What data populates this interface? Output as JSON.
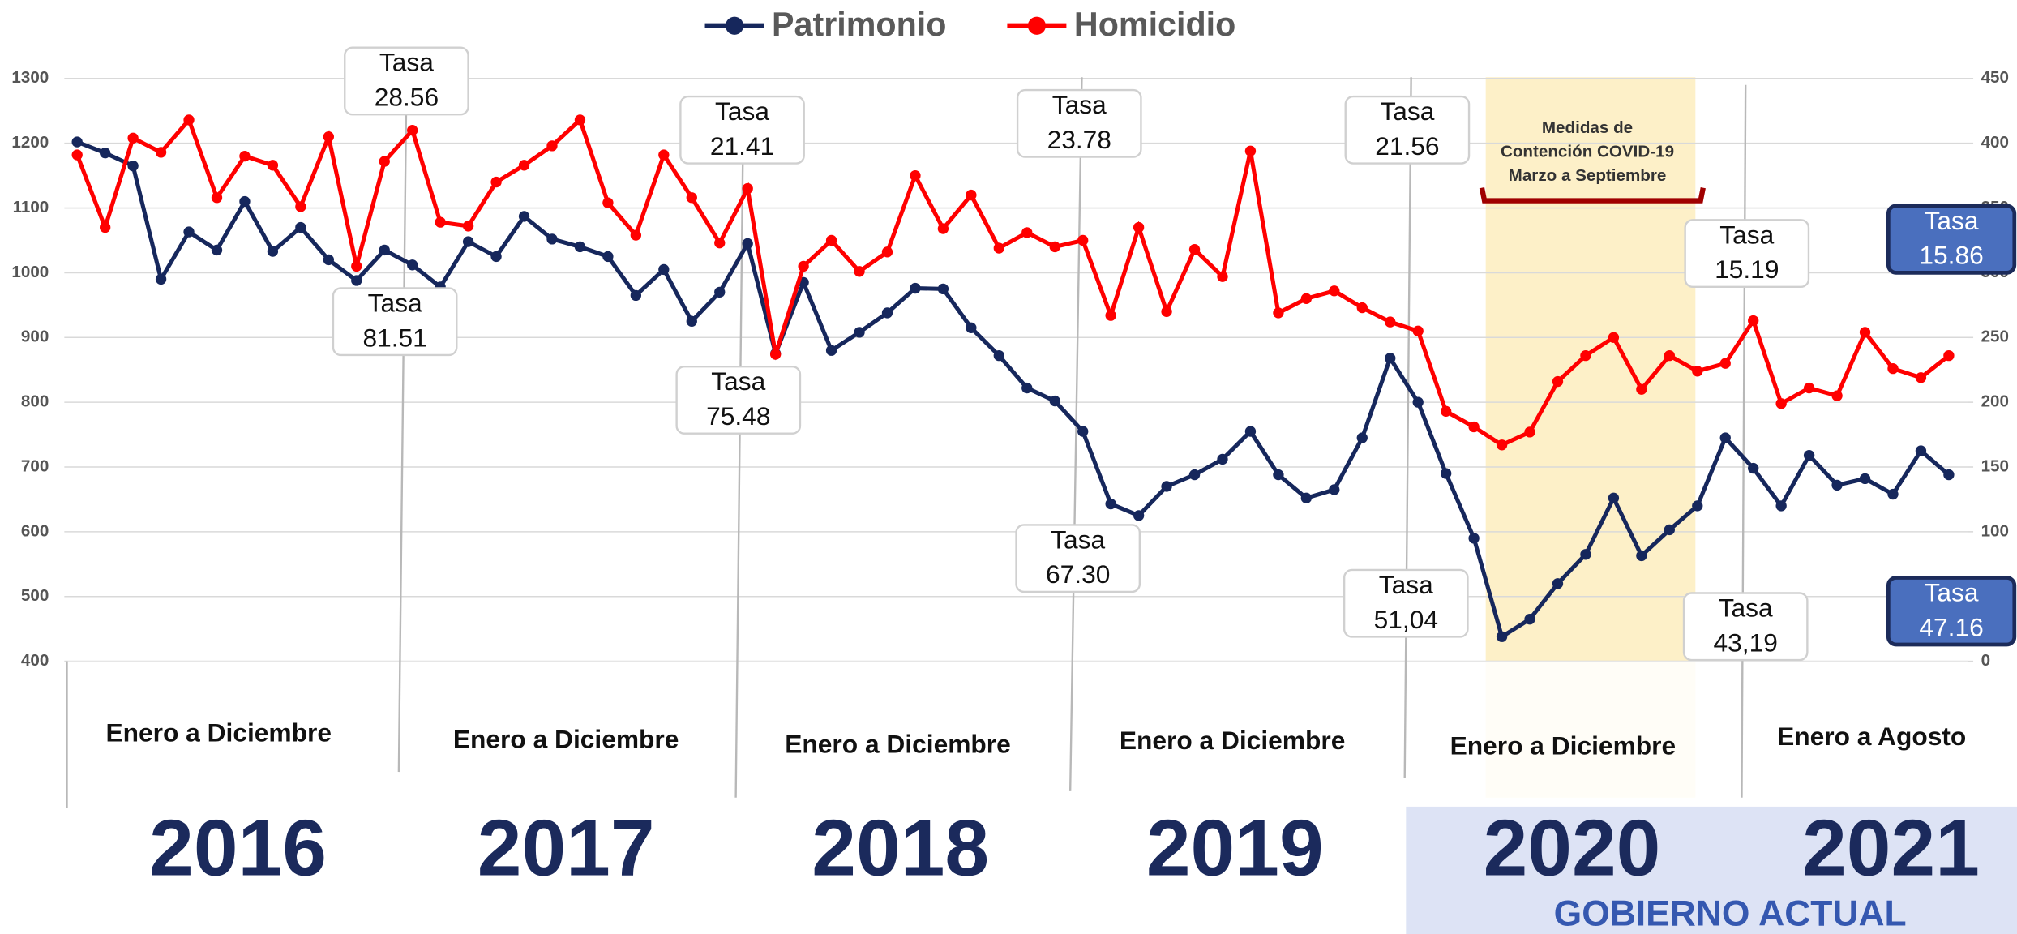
{
  "chart_data": {
    "type": "line",
    "legend": {
      "position": "top"
    },
    "series": [
      {
        "name": "Patrimonio",
        "color": "#16275c",
        "axis": "y",
        "values": [
          1202,
          1185,
          1165,
          990,
          1063,
          1035,
          1110,
          1033,
          1070,
          1020,
          988,
          1035,
          1012,
          978,
          1048,
          1025,
          1087,
          1052,
          1040,
          1025,
          965,
          1005,
          925,
          970,
          1045,
          875,
          985,
          880,
          908,
          938,
          976,
          975,
          915,
          872,
          822,
          802,
          755,
          643,
          625,
          670,
          688,
          712,
          755,
          688,
          652,
          665,
          745,
          868,
          800,
          690,
          590,
          438,
          465,
          520,
          565,
          652,
          563,
          603,
          640,
          745,
          698,
          640,
          718,
          672,
          682,
          658,
          725,
          688
        ]
      },
      {
        "name": "Homicidio",
        "color": "#ff0000",
        "axis": "y2",
        "values": [
          391,
          335,
          404,
          393,
          418,
          358,
          390,
          383,
          351,
          405,
          305,
          386,
          410,
          339,
          336,
          370,
          383,
          398,
          418,
          354,
          329,
          391,
          358,
          323,
          365,
          237,
          305,
          325,
          301,
          316,
          375,
          334,
          360,
          319,
          331,
          320,
          325,
          267,
          335,
          270,
          318,
          297,
          394,
          269,
          280,
          286,
          273,
          262,
          255,
          193,
          181,
          167,
          177,
          216,
          236,
          250,
          210,
          236,
          224,
          230,
          263,
          199,
          211,
          205,
          254,
          226,
          219,
          236
        ]
      }
    ],
    "ylim": [
      400,
      1300
    ],
    "yticks": [
      400,
      500,
      600,
      700,
      800,
      900,
      1000,
      1100,
      1200,
      1300
    ],
    "y2lim": [
      0,
      450
    ],
    "y2ticks": [
      0,
      50,
      100,
      150,
      200,
      250,
      300,
      350,
      400,
      450
    ],
    "grid": true,
    "annotations": [
      {
        "label": "Tasa",
        "value": "28.56"
      },
      {
        "label": "Tasa",
        "value": "81.51"
      },
      {
        "label": "Tasa",
        "value": "21.41"
      },
      {
        "label": "Tasa",
        "value": "75.48"
      },
      {
        "label": "Tasa",
        "value": "23.78"
      },
      {
        "label": "Tasa",
        "value": "67.30"
      },
      {
        "label": "Tasa",
        "value": "21.56"
      },
      {
        "label": "Tasa",
        "value": "51,04"
      },
      {
        "label": "Tasa",
        "value": "15.19"
      },
      {
        "label": "Tasa",
        "value": "43,19"
      },
      {
        "label": "Tasa",
        "value": "15.86"
      },
      {
        "label": "Tasa",
        "value": "47.16"
      }
    ],
    "covid_note": [
      "Medidas de",
      "Contención COVID-19",
      "Marzo a Septiembre"
    ],
    "periods": [
      "Enero a Diciembre",
      "Enero a Diciembre",
      "Enero a Diciembre",
      "Enero a Diciembre",
      "Enero a Diciembre",
      "Enero a Agosto"
    ],
    "years": [
      "2016",
      "2017",
      "2018",
      "2019",
      "2020",
      "2021"
    ],
    "government_label": "GOBIERNO ACTUAL"
  }
}
